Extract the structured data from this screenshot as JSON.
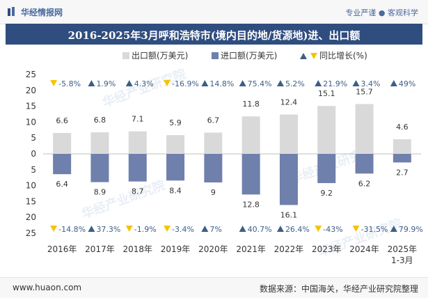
{
  "header": {
    "brand": "华经情报网",
    "tagline": "专业严谨 ● 客观科学"
  },
  "title": "2016-2025年3月呼和浩特市(境内目的地/货源地)进、出口额",
  "footer": {
    "website": "www.huaon.com",
    "source": "数据来源：中国海关，华经产业研究院整理"
  },
  "watermark": "华经产业研究院",
  "colors": {
    "export": "#d9d9d9",
    "import": "#6f80ad",
    "up": "#3d5e86",
    "down": "#f5c400",
    "title_bg": "#2f4d7f"
  },
  "chart_data": {
    "type": "bar",
    "categories": [
      "2016年",
      "2017年",
      "2018年",
      "2019年",
      "2020年",
      "2021年",
      "2022年",
      "2023年",
      "2024年",
      "2025年\n1-3月"
    ],
    "series": [
      {
        "name": "出口额(万美元)",
        "values": [
          6.6,
          6.8,
          7.1,
          5.9,
          6.7,
          11.8,
          12.4,
          15.1,
          15.7,
          4.6
        ],
        "labels": [
          "6.6",
          "6.8",
          "7.1",
          "5.9",
          "6.7",
          "11.8",
          "12.4",
          "15.1",
          "15.7",
          "4.6"
        ]
      },
      {
        "name": "进口额(万美元)",
        "values": [
          6.4,
          8.9,
          8.7,
          8.4,
          9,
          12.8,
          16.1,
          9.2,
          6.2,
          2.7
        ],
        "labels": [
          "6.4",
          "8.9",
          "8.7",
          "8.4",
          "9",
          "12.8",
          "16.1",
          "9.2",
          "6.2",
          "2.7"
        ]
      }
    ],
    "export_growth": [
      {
        "label": "-5.8%",
        "dir": "down"
      },
      {
        "label": "1.9%",
        "dir": "up"
      },
      {
        "label": "4.3%",
        "dir": "up"
      },
      {
        "label": "-16.9%",
        "dir": "down"
      },
      {
        "label": "14.8%",
        "dir": "up"
      },
      {
        "label": "75.4%",
        "dir": "up"
      },
      {
        "label": "5.2%",
        "dir": "up"
      },
      {
        "label": "21.9%",
        "dir": "up"
      },
      {
        "label": "3.4%",
        "dir": "up"
      },
      {
        "label": "49%",
        "dir": "up"
      }
    ],
    "import_growth": [
      {
        "label": "-14.8%",
        "dir": "down"
      },
      {
        "label": "37.3%",
        "dir": "up"
      },
      {
        "label": "-1.9%",
        "dir": "down"
      },
      {
        "label": "-3.4%",
        "dir": "down"
      },
      {
        "label": "7%",
        "dir": "up"
      },
      {
        "label": "40.7%",
        "dir": "up"
      },
      {
        "label": "26.4%",
        "dir": "up"
      },
      {
        "label": "-43%",
        "dir": "down"
      },
      {
        "label": "-31.5%",
        "dir": "down"
      },
      {
        "label": "79.9%",
        "dir": "up"
      }
    ],
    "legend": {
      "export": "出口额(万美元)",
      "import": "进口额(万美元)",
      "growth": "同比增长(%)"
    },
    "y_ticks": [
      "25",
      "20",
      "15",
      "10",
      "5",
      "0",
      "5",
      "10",
      "15",
      "20",
      "25"
    ],
    "ylim": [
      -25,
      25
    ]
  }
}
